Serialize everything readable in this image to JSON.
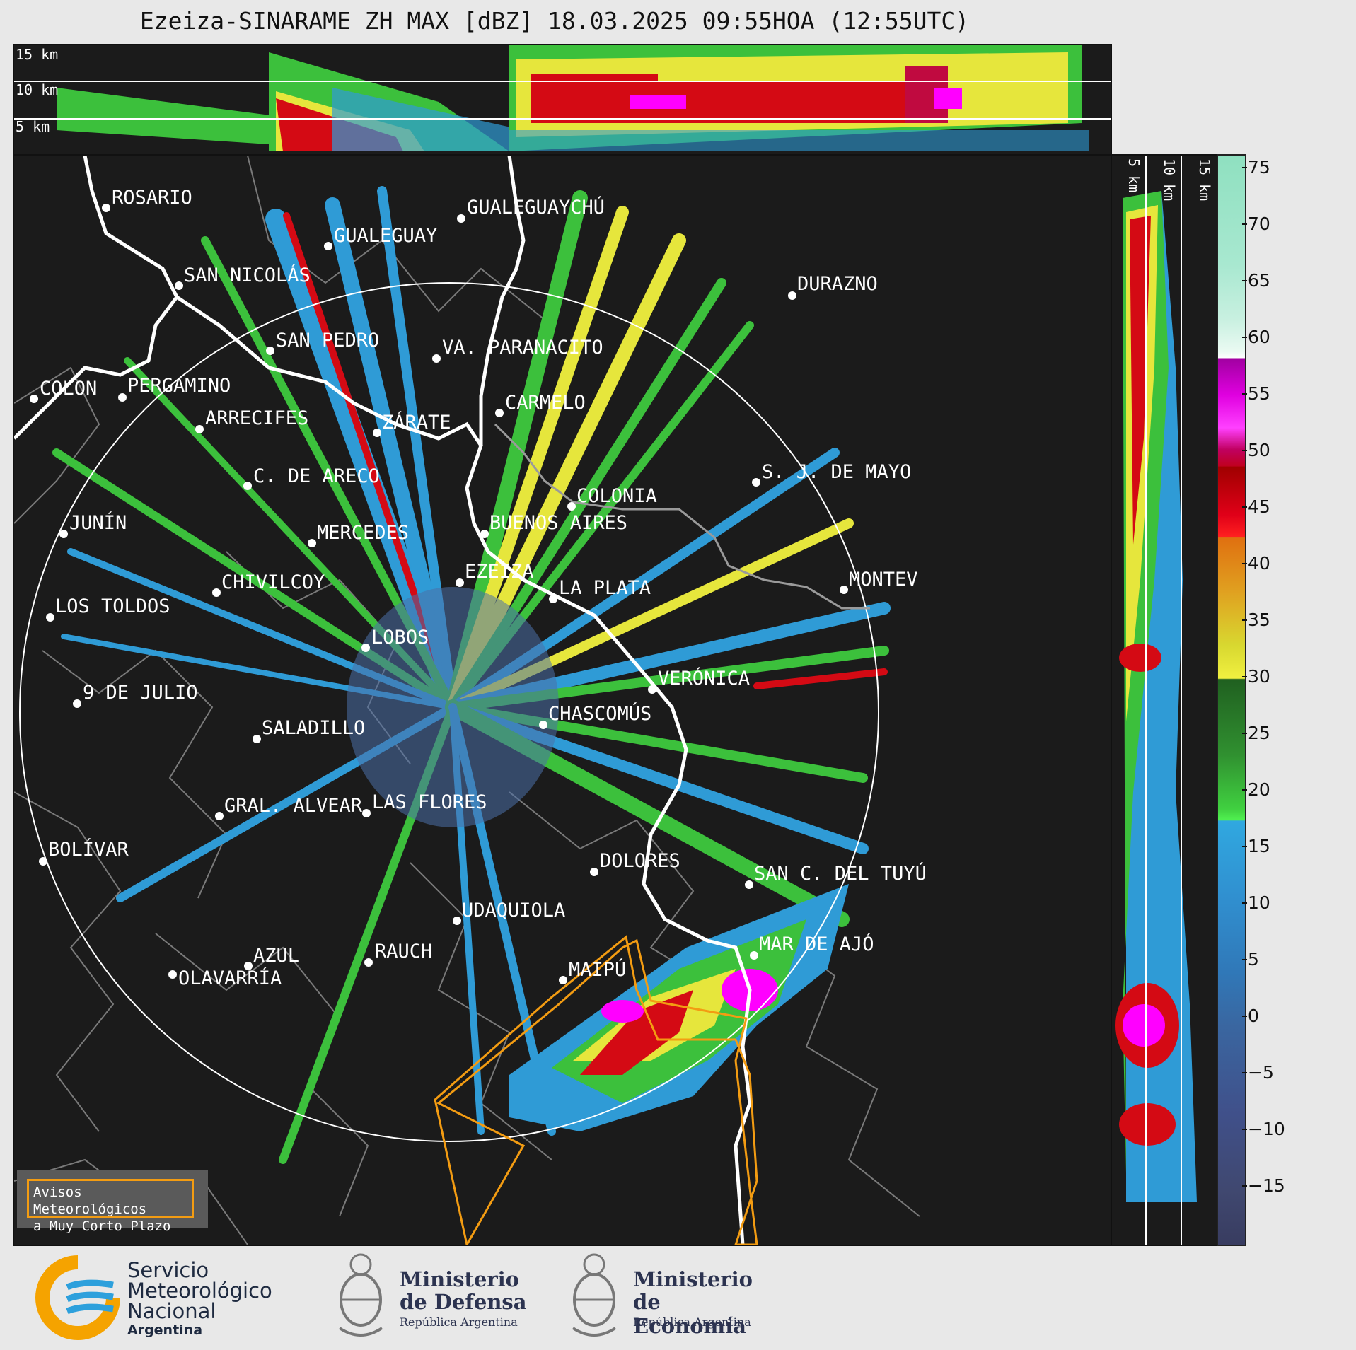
{
  "title": "Ezeiza-SINARAME ZH MAX [dBZ] 18.03.2025 09:55HOA (12:55UTC)",
  "top_panel": {
    "height_labels": [
      "15 km",
      "10 km",
      "5 km"
    ]
  },
  "side_panel": {
    "height_labels": [
      "5 km",
      "10 km",
      "15 km"
    ]
  },
  "colorbar": {
    "ticks": [
      "75",
      "70",
      "65",
      "60",
      "55",
      "50",
      "45",
      "40",
      "35",
      "30",
      "25",
      "20",
      "15",
      "10",
      "5",
      "0",
      "−5",
      "−10",
      "−15"
    ]
  },
  "map": {
    "places": [
      {
        "name": "ROSARIO"
      },
      {
        "name": "GUALEGUAYCHÚ"
      },
      {
        "name": "GUALEGUAY"
      },
      {
        "name": "SAN NICOLÁS"
      },
      {
        "name": "DURAZNO"
      },
      {
        "name": "SAN PEDRO"
      },
      {
        "name": "VA. PARANACITO"
      },
      {
        "name": "COLON"
      },
      {
        "name": "PERGAMINO"
      },
      {
        "name": "CARMELO"
      },
      {
        "name": "ARRECIFES"
      },
      {
        "name": "ZÁRATE"
      },
      {
        "name": "S. J. DE MAYO"
      },
      {
        "name": "C. DE ARECO"
      },
      {
        "name": "COLONIA"
      },
      {
        "name": "JUNÍN"
      },
      {
        "name": "BUENOS AIRES"
      },
      {
        "name": "MERCEDES"
      },
      {
        "name": "EZEIZA"
      },
      {
        "name": "MONTEV"
      },
      {
        "name": "CHIVILCOY"
      },
      {
        "name": "LA PLATA"
      },
      {
        "name": "LOS TOLDOS"
      },
      {
        "name": "LOBOS"
      },
      {
        "name": "VERÓNICA"
      },
      {
        "name": "9 DE JULIO"
      },
      {
        "name": "CHASCOMÚS"
      },
      {
        "name": "SALADILLO"
      },
      {
        "name": "GRAL. ALVEAR"
      },
      {
        "name": "LAS FLORES"
      },
      {
        "name": "BOLÍVAR"
      },
      {
        "name": "DOLORES"
      },
      {
        "name": "SAN C. DEL TUYÚ"
      },
      {
        "name": "UDAQUIOLA"
      },
      {
        "name": "MAR DE AJÓ"
      },
      {
        "name": "AZUL"
      },
      {
        "name": "RAUCH"
      },
      {
        "name": "OLAVARRÍA"
      },
      {
        "name": "MAIPÚ"
      }
    ],
    "legend": {
      "line1": "Avisos Meteorológicos",
      "line2": "a Muy Corto Plazo",
      "color": "#f39c12"
    }
  },
  "footer": {
    "smn": {
      "line1": "Servicio",
      "line2": "Meteorológico",
      "line3": "Nacional",
      "line4": "Argentina"
    },
    "defensa": {
      "line1": "Ministerio",
      "line2": "de Defensa",
      "line3": "República Argentina"
    },
    "economia": {
      "line1": "Ministerio",
      "line2": "de Economía",
      "line3": "República Argentina"
    }
  },
  "colors": {
    "background": "#1b1b1b",
    "range_ring": "#ffffff",
    "coast": "#ffffff",
    "warning": "#f39c12"
  }
}
